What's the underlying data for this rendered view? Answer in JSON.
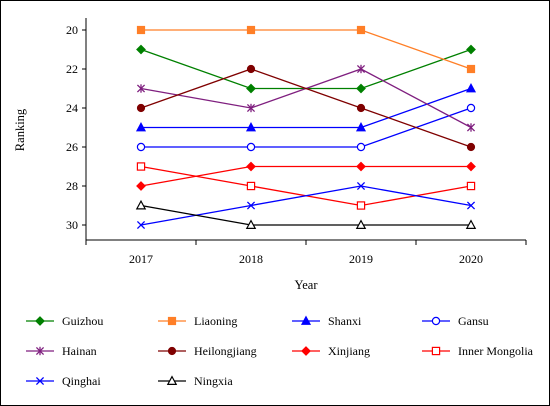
{
  "chart_data": {
    "type": "line",
    "title": "",
    "xlabel": "Year",
    "ylabel": "Ranking",
    "x": [
      "2017",
      "2018",
      "2019",
      "2020"
    ],
    "ylim": [
      20,
      31
    ],
    "y_reversed": true,
    "yticks": [
      20,
      22,
      24,
      26,
      28,
      30
    ],
    "grid": false,
    "legend_position": "bottom",
    "series": [
      {
        "name": "Guizhou",
        "color": "#008000",
        "marker": "diamond-filled",
        "values": [
          21,
          23,
          23,
          21
        ]
      },
      {
        "name": "Liaoning",
        "color": "#FF7F27",
        "marker": "square-filled",
        "values": [
          20,
          20,
          20,
          22
        ]
      },
      {
        "name": "Shanxi",
        "color": "#0000FF",
        "marker": "triangle-filled",
        "values": [
          25,
          25,
          25,
          23
        ]
      },
      {
        "name": "Gansu",
        "color": "#0000FF",
        "marker": "circle-open",
        "values": [
          26,
          26,
          26,
          24
        ]
      },
      {
        "name": "Hainan",
        "color": "#7F1F7F",
        "marker": "asterisk",
        "values": [
          23,
          24,
          22,
          25
        ]
      },
      {
        "name": "Heilongjiang",
        "color": "#7F0000",
        "marker": "circle-filled",
        "values": [
          24,
          22,
          24,
          26
        ]
      },
      {
        "name": "Xinjiang",
        "color": "#FF0000",
        "marker": "diamond-filled",
        "values": [
          28,
          27,
          27,
          27
        ]
      },
      {
        "name": "Inner Mongolia",
        "color": "#FF0000",
        "marker": "square-open",
        "values": [
          27,
          28,
          29,
          28
        ]
      },
      {
        "name": "Qinghai",
        "color": "#0000FF",
        "marker": "x",
        "values": [
          30,
          29,
          28,
          29
        ]
      },
      {
        "name": "Ningxia",
        "color": "#000000",
        "marker": "triangle-open",
        "values": [
          29,
          30,
          30,
          30
        ]
      }
    ]
  }
}
